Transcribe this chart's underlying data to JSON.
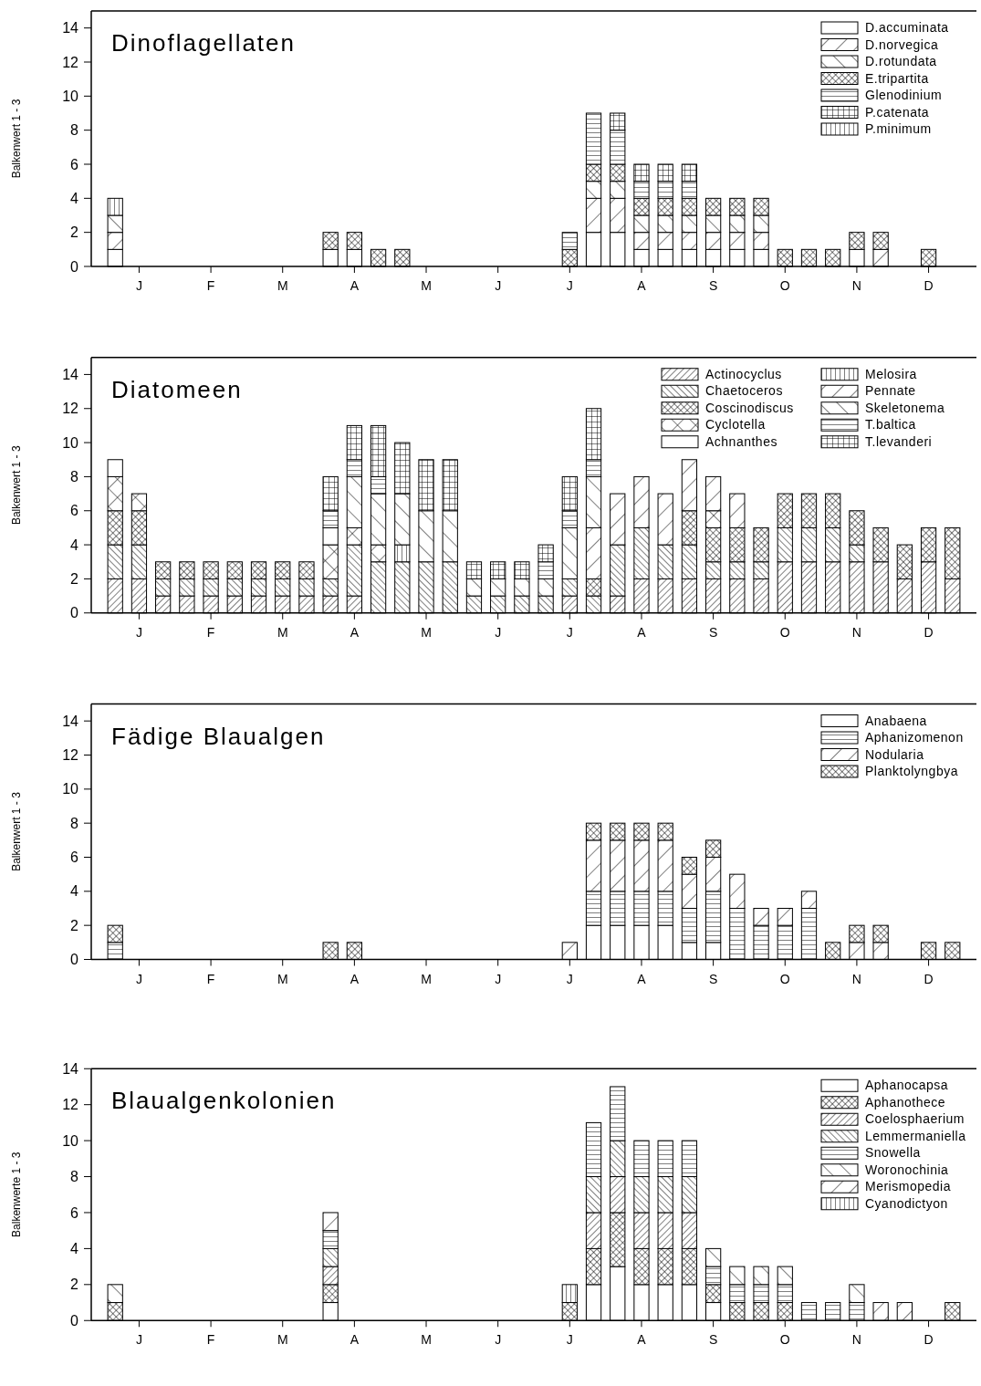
{
  "chart_data": [
    {
      "type": "bar",
      "stacked": true,
      "title": "Dinoflagellaten",
      "ylabel": "Balkenwert 1 - 3",
      "legend": "top right",
      "ylim": [
        0,
        15
      ],
      "yticks": [
        0,
        2,
        4,
        6,
        8,
        10,
        12,
        14
      ],
      "categories": [
        null,
        "J",
        null,
        null,
        "F",
        null,
        null,
        "M",
        null,
        null,
        "A",
        null,
        null,
        "M",
        null,
        null,
        "J",
        null,
        null,
        "J",
        null,
        null,
        "A",
        null,
        null,
        "S",
        null,
        null,
        "O",
        null,
        null,
        "N",
        null,
        null,
        "D",
        null
      ],
      "series": [
        {
          "name": "D.accuminata",
          "color": "#000000",
          "values": [
            1,
            null,
            null,
            null,
            null,
            null,
            null,
            null,
            null,
            1,
            1,
            null,
            null,
            null,
            null,
            null,
            null,
            null,
            null,
            null,
            2,
            2,
            1,
            1,
            1,
            1,
            1,
            1,
            null,
            null,
            null,
            1,
            null,
            null,
            null,
            null
          ]
        },
        {
          "name": "D.norvegica",
          "color": "#000000",
          "values": [
            1,
            null,
            null,
            null,
            null,
            null,
            null,
            null,
            null,
            null,
            null,
            null,
            null,
            null,
            null,
            null,
            null,
            null,
            null,
            null,
            2,
            2,
            1,
            1,
            1,
            1,
            1,
            1,
            null,
            null,
            null,
            null,
            1,
            null,
            null,
            null
          ]
        },
        {
          "name": "D.rotundata",
          "color": "#000000",
          "values": [
            1,
            null,
            null,
            null,
            null,
            null,
            null,
            null,
            null,
            null,
            null,
            null,
            null,
            null,
            null,
            null,
            null,
            null,
            null,
            null,
            1,
            1,
            1,
            1,
            1,
            1,
            1,
            1,
            null,
            null,
            null,
            null,
            null,
            null,
            null,
            null
          ]
        },
        {
          "name": "E.tripartita",
          "color": "#000000",
          "values": [
            null,
            null,
            null,
            null,
            null,
            null,
            null,
            null,
            null,
            1,
            1,
            1,
            1,
            null,
            null,
            null,
            null,
            null,
            null,
            1,
            1,
            1,
            1,
            1,
            1,
            1,
            1,
            1,
            1,
            1,
            1,
            1,
            1,
            null,
            1,
            null
          ]
        },
        {
          "name": "Glenodinium",
          "color": "#000000",
          "values": [
            null,
            null,
            null,
            null,
            null,
            null,
            null,
            null,
            null,
            null,
            null,
            null,
            null,
            null,
            null,
            null,
            null,
            null,
            null,
            1,
            3,
            2,
            1,
            1,
            1,
            null,
            null,
            null,
            null,
            null,
            null,
            null,
            null,
            null,
            null,
            null
          ]
        },
        {
          "name": "P.catenata",
          "color": "#000000",
          "values": [
            null,
            null,
            null,
            null,
            null,
            null,
            null,
            null,
            null,
            null,
            null,
            null,
            null,
            null,
            null,
            null,
            null,
            null,
            null,
            null,
            null,
            1,
            1,
            1,
            1,
            null,
            null,
            null,
            null,
            null,
            null,
            null,
            null,
            null,
            null,
            null
          ]
        },
        {
          "name": "P.minimum",
          "color": "#000000",
          "values": [
            1,
            null,
            null,
            null,
            null,
            null,
            null,
            null,
            null,
            null,
            null,
            null,
            null,
            null,
            null,
            null,
            null,
            null,
            null,
            null,
            null,
            null,
            null,
            null,
            null,
            null,
            null,
            null,
            null,
            null,
            null,
            null,
            null,
            null,
            null,
            null
          ]
        }
      ]
    },
    {
      "type": "bar",
      "stacked": true,
      "title": "Diatomeen",
      "ylabel": "Balkenwert 1 - 3",
      "legend": "top right",
      "ylim": [
        0,
        15
      ],
      "yticks": [
        0,
        2,
        4,
        6,
        8,
        10,
        12,
        14
      ],
      "categories": [
        null,
        "J",
        null,
        null,
        "F",
        null,
        null,
        "M",
        null,
        null,
        "A",
        null,
        null,
        "M",
        null,
        null,
        "J",
        null,
        null,
        "J",
        null,
        null,
        "A",
        null,
        null,
        "S",
        null,
        null,
        "O",
        null,
        null,
        "N",
        null,
        null,
        "D",
        null
      ],
      "series": [
        {
          "name": "Actinocyclus",
          "color": "#000000",
          "values": [
            2,
            2,
            1,
            1,
            1,
            1,
            1,
            1,
            1,
            1,
            1,
            null,
            null,
            null,
            null,
            null,
            null,
            null,
            null,
            1,
            null,
            1,
            2,
            2,
            2,
            2,
            2,
            2,
            3,
            3,
            3,
            3,
            3,
            2,
            3,
            2
          ]
        },
        {
          "name": "Chaetoceros",
          "color": "#000000",
          "values": [
            2,
            2,
            1,
            1,
            1,
            1,
            1,
            1,
            1,
            1,
            3,
            3,
            3,
            3,
            3,
            1,
            1,
            1,
            1,
            1,
            1,
            3,
            3,
            2,
            2,
            1,
            1,
            1,
            2,
            2,
            2,
            1,
            null,
            null,
            null,
            null
          ]
        },
        {
          "name": "Coscinodiscus",
          "color": "#000000",
          "values": [
            2,
            2,
            1,
            1,
            1,
            1,
            1,
            1,
            1,
            null,
            null,
            null,
            null,
            null,
            null,
            null,
            null,
            null,
            null,
            null,
            1,
            null,
            null,
            null,
            2,
            2,
            2,
            2,
            2,
            2,
            2,
            2,
            2,
            2,
            2,
            3
          ]
        },
        {
          "name": "Cyclotella",
          "color": "#000000",
          "values": [
            2,
            1,
            null,
            null,
            null,
            null,
            null,
            null,
            null,
            2,
            1,
            1,
            null,
            null,
            null,
            null,
            null,
            null,
            null,
            null,
            null,
            null,
            null,
            null,
            null,
            1,
            null,
            null,
            null,
            null,
            null,
            null,
            null,
            null,
            null,
            null
          ]
        },
        {
          "name": "Achnanthes",
          "color": "#000000",
          "values": [
            1,
            null,
            null,
            null,
            null,
            null,
            null,
            null,
            null,
            1,
            null,
            null,
            null,
            null,
            null,
            null,
            null,
            null,
            null,
            null,
            null,
            null,
            null,
            null,
            null,
            null,
            null,
            null,
            null,
            null,
            null,
            null,
            null,
            null,
            null,
            null
          ]
        },
        {
          "name": "Melosira",
          "color": "#000000",
          "values": [
            null,
            null,
            null,
            null,
            null,
            null,
            null,
            null,
            null,
            null,
            null,
            null,
            1,
            null,
            null,
            null,
            null,
            null,
            null,
            null,
            null,
            null,
            null,
            null,
            null,
            null,
            null,
            null,
            null,
            null,
            null,
            null,
            null,
            null,
            null,
            null
          ]
        },
        {
          "name": "Pennate",
          "color": "#000000",
          "values": [
            null,
            null,
            null,
            null,
            null,
            null,
            null,
            null,
            null,
            null,
            null,
            null,
            null,
            null,
            null,
            null,
            null,
            null,
            null,
            null,
            3,
            3,
            3,
            3,
            3,
            2,
            2,
            null,
            null,
            null,
            null,
            null,
            null,
            null,
            null,
            null
          ]
        },
        {
          "name": "Skeletonema",
          "color": "#000000",
          "values": [
            null,
            null,
            null,
            null,
            null,
            null,
            null,
            null,
            null,
            null,
            3,
            3,
            3,
            3,
            3,
            1,
            1,
            1,
            1,
            3,
            3,
            null,
            null,
            null,
            null,
            null,
            null,
            null,
            null,
            null,
            null,
            null,
            null,
            null,
            null,
            null
          ]
        },
        {
          "name": "T.baltica",
          "color": "#000000",
          "values": [
            null,
            null,
            null,
            null,
            null,
            null,
            null,
            null,
            null,
            1,
            1,
            1,
            null,
            null,
            null,
            null,
            null,
            null,
            1,
            1,
            1,
            null,
            null,
            null,
            null,
            null,
            null,
            null,
            null,
            null,
            null,
            null,
            null,
            null,
            null,
            null
          ]
        },
        {
          "name": "T.levanderi",
          "color": "#000000",
          "values": [
            null,
            null,
            null,
            null,
            null,
            null,
            null,
            null,
            null,
            2,
            2,
            3,
            3,
            3,
            3,
            1,
            1,
            1,
            1,
            2,
            3,
            null,
            null,
            null,
            null,
            null,
            null,
            null,
            null,
            null,
            null,
            null,
            null,
            null,
            null,
            null
          ]
        }
      ]
    },
    {
      "type": "bar",
      "stacked": true,
      "title": "Fädige Blaualgen",
      "ylabel": "Balkenwert 1 - 3",
      "legend": "top right",
      "ylim": [
        0,
        15
      ],
      "yticks": [
        0,
        2,
        4,
        6,
        8,
        10,
        12,
        14
      ],
      "categories": [
        null,
        "J",
        null,
        null,
        "F",
        null,
        null,
        "M",
        null,
        null,
        "A",
        null,
        null,
        "M",
        null,
        null,
        "J",
        null,
        null,
        "J",
        null,
        null,
        "A",
        null,
        null,
        "S",
        null,
        null,
        "O",
        null,
        null,
        "N",
        null,
        null,
        "D",
        null
      ],
      "series": [
        {
          "name": "Anabaena",
          "color": "#000000",
          "values": [
            null,
            null,
            null,
            null,
            null,
            null,
            null,
            null,
            null,
            null,
            null,
            null,
            null,
            null,
            null,
            null,
            null,
            null,
            null,
            null,
            2,
            2,
            2,
            2,
            1,
            1,
            null,
            null,
            null,
            null,
            null,
            null,
            null,
            null,
            null,
            null
          ]
        },
        {
          "name": "Aphanizomenon",
          "color": "#000000",
          "values": [
            1,
            null,
            null,
            null,
            null,
            null,
            null,
            null,
            null,
            null,
            null,
            null,
            null,
            null,
            null,
            null,
            null,
            null,
            null,
            null,
            2,
            2,
            2,
            2,
            2,
            3,
            3,
            2,
            2,
            3,
            null,
            null,
            null,
            null,
            null,
            null
          ]
        },
        {
          "name": "Nodularia",
          "color": "#000000",
          "values": [
            null,
            null,
            null,
            null,
            null,
            null,
            null,
            null,
            null,
            null,
            null,
            null,
            null,
            null,
            null,
            null,
            null,
            null,
            null,
            1,
            3,
            3,
            3,
            3,
            2,
            2,
            2,
            1,
            1,
            1,
            null,
            1,
            1,
            null,
            null,
            null
          ]
        },
        {
          "name": "Planktolyngbya",
          "color": "#000000",
          "values": [
            1,
            null,
            null,
            null,
            null,
            null,
            null,
            null,
            null,
            1,
            1,
            null,
            null,
            null,
            null,
            null,
            null,
            null,
            null,
            null,
            1,
            1,
            1,
            1,
            1,
            1,
            null,
            null,
            null,
            null,
            1,
            1,
            1,
            null,
            1,
            1
          ]
        }
      ]
    },
    {
      "type": "bar",
      "stacked": true,
      "title": "Blaualgenkolonien",
      "ylabel": "Balkenwerte 1 - 3",
      "legend": "top right",
      "ylim": [
        0,
        14
      ],
      "yticks": [
        0,
        2,
        4,
        6,
        8,
        10,
        12,
        14
      ],
      "categories": [
        null,
        "J",
        null,
        null,
        "F",
        null,
        null,
        "M",
        null,
        null,
        "A",
        null,
        null,
        "M",
        null,
        null,
        "J",
        null,
        null,
        "J",
        null,
        null,
        "A",
        null,
        null,
        "S",
        null,
        null,
        "O",
        null,
        null,
        "N",
        null,
        null,
        "D",
        null
      ],
      "series": [
        {
          "name": "Aphanocapsa",
          "color": "#000000",
          "values": [
            null,
            null,
            null,
            null,
            null,
            null,
            null,
            null,
            null,
            1,
            null,
            null,
            null,
            null,
            null,
            null,
            null,
            null,
            null,
            null,
            2,
            3,
            2,
            2,
            2,
            1,
            null,
            null,
            null,
            null,
            null,
            null,
            null,
            null,
            null,
            null
          ]
        },
        {
          "name": "Aphanothece",
          "color": "#000000",
          "values": [
            1,
            null,
            null,
            null,
            null,
            null,
            null,
            null,
            null,
            1,
            null,
            null,
            null,
            null,
            null,
            null,
            null,
            null,
            null,
            1,
            2,
            3,
            2,
            2,
            2,
            1,
            1,
            1,
            1,
            null,
            null,
            null,
            null,
            null,
            null,
            1
          ]
        },
        {
          "name": "Coelosphaerium",
          "color": "#000000",
          "values": [
            null,
            null,
            null,
            null,
            null,
            null,
            null,
            null,
            null,
            1,
            null,
            null,
            null,
            null,
            null,
            null,
            null,
            null,
            null,
            null,
            2,
            2,
            2,
            2,
            2,
            null,
            null,
            null,
            null,
            null,
            null,
            null,
            null,
            null,
            null,
            null
          ]
        },
        {
          "name": "Lemmermaniella",
          "color": "#000000",
          "values": [
            null,
            null,
            null,
            null,
            null,
            null,
            null,
            null,
            null,
            1,
            null,
            null,
            null,
            null,
            null,
            null,
            null,
            null,
            null,
            null,
            2,
            2,
            2,
            2,
            2,
            null,
            null,
            null,
            null,
            null,
            null,
            null,
            null,
            null,
            null,
            null
          ]
        },
        {
          "name": "Snowella",
          "color": "#000000",
          "values": [
            null,
            null,
            null,
            null,
            null,
            null,
            null,
            null,
            null,
            1,
            null,
            null,
            null,
            null,
            null,
            null,
            null,
            null,
            null,
            null,
            3,
            3,
            2,
            2,
            2,
            1,
            1,
            1,
            1,
            1,
            1,
            1,
            null,
            null,
            null,
            null
          ]
        },
        {
          "name": "Woronochinia",
          "color": "#000000",
          "values": [
            1,
            null,
            null,
            null,
            null,
            null,
            null,
            null,
            null,
            null,
            null,
            null,
            null,
            null,
            null,
            null,
            null,
            null,
            null,
            null,
            null,
            null,
            null,
            null,
            null,
            1,
            1,
            1,
            1,
            null,
            null,
            1,
            null,
            null,
            null,
            null
          ]
        },
        {
          "name": "Merismopedia",
          "color": "#000000",
          "values": [
            null,
            null,
            null,
            null,
            null,
            null,
            null,
            null,
            null,
            1,
            null,
            null,
            null,
            null,
            null,
            null,
            null,
            null,
            null,
            null,
            null,
            null,
            null,
            null,
            null,
            null,
            null,
            null,
            null,
            null,
            null,
            null,
            1,
            1,
            null,
            null
          ]
        },
        {
          "name": "Cyanodictyon",
          "color": "#000000",
          "values": [
            null,
            null,
            null,
            null,
            null,
            null,
            null,
            null,
            null,
            null,
            null,
            null,
            null,
            null,
            null,
            null,
            null,
            null,
            null,
            1,
            null,
            null,
            null,
            null,
            null,
            null,
            null,
            null,
            null,
            null,
            null,
            null,
            null,
            null,
            null,
            null
          ]
        }
      ]
    }
  ]
}
